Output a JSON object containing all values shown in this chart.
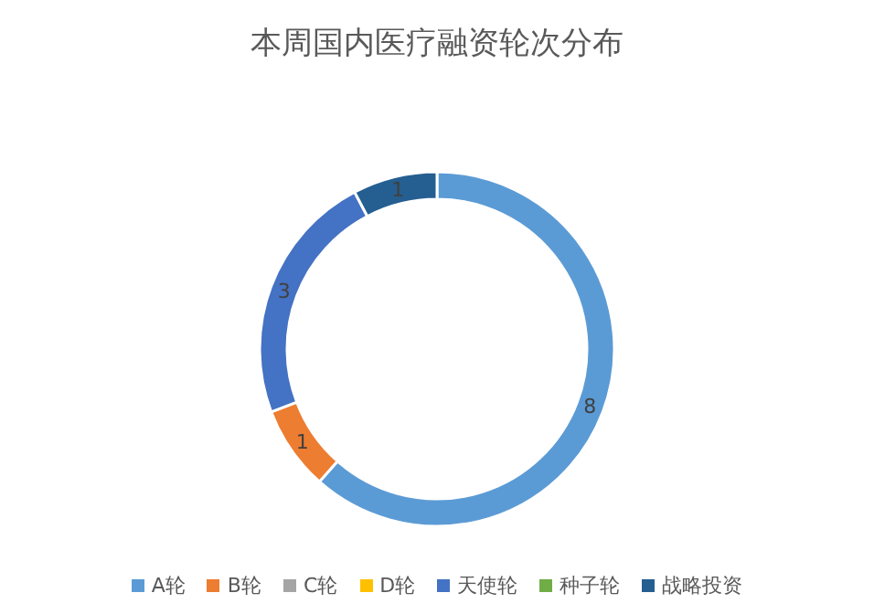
{
  "chart_data": {
    "type": "donut",
    "title": "本周国内医疗融资轮次分布",
    "categories": [
      "A轮",
      "B轮",
      "C轮",
      "D轮",
      "天使轮",
      "种子轮",
      "战略投资"
    ],
    "values": [
      8,
      1,
      0,
      0,
      3,
      0,
      1
    ],
    "colors": [
      "#5b9bd5",
      "#ed7d31",
      "#a5a5a5",
      "#ffc000",
      "#4472c4",
      "#70ad47",
      "#255e91"
    ],
    "data_labels": true,
    "legend": "bottom"
  }
}
